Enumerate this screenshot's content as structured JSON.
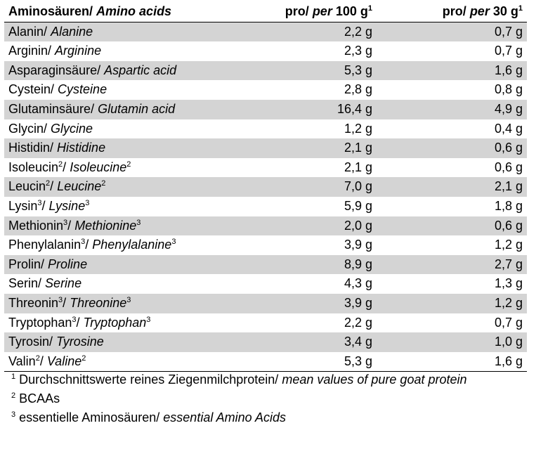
{
  "header": {
    "col1_de": "Aminosäuren/",
    "col1_en": "Amino acids",
    "col2_de": "pro/",
    "col2_en": "per",
    "col2_amount": "100 g",
    "col2_sup": "1",
    "col3_de": "pro/",
    "col3_en": "per",
    "col3_amount": "30 g",
    "col3_sup": "1"
  },
  "rows": [
    {
      "de": "Alanin",
      "en": "Alanine",
      "sup": "",
      "v100": "2,2 g",
      "v30": "0,7 g"
    },
    {
      "de": "Arginin",
      "en": "Arginine",
      "sup": "",
      "v100": "2,3 g",
      "v30": "0,7 g"
    },
    {
      "de": "Asparaginsäure",
      "en": "Aspartic acid",
      "sup": "",
      "v100": "5,3 g",
      "v30": "1,6 g"
    },
    {
      "de": "Cystein",
      "en": "Cysteine",
      "sup": "",
      "v100": "2,8 g",
      "v30": "0,8 g"
    },
    {
      "de": "Glutaminsäure",
      "en": "Glutamin acid",
      "sup": "",
      "v100": "16,4 g",
      "v30": "4,9 g"
    },
    {
      "de": "Glycin",
      "en": "Glycine",
      "sup": "",
      "v100": "1,2 g",
      "v30": "0,4 g"
    },
    {
      "de": "Histidin",
      "en": "Histidine",
      "sup": "",
      "v100": "2,1 g",
      "v30": "0,6 g"
    },
    {
      "de": "Isoleucin",
      "en": "Isoleucine",
      "sup": "2",
      "v100": "2,1 g",
      "v30": "0,6 g"
    },
    {
      "de": "Leucin",
      "en": "Leucine",
      "sup": "2",
      "v100": "7,0 g",
      "v30": "2,1 g"
    },
    {
      "de": "Lysin",
      "en": "Lysine",
      "sup": "3",
      "v100": "5,9 g",
      "v30": "1,8 g"
    },
    {
      "de": "Methionin",
      "en": "Methionine",
      "sup": "3",
      "v100": "2,0 g",
      "v30": "0,6 g"
    },
    {
      "de": "Phenylalanin",
      "en": "Phenylalanine",
      "sup": "3",
      "v100": "3,9 g",
      "v30": "1,2 g"
    },
    {
      "de": "Prolin",
      "en": "Proline",
      "sup": "",
      "v100": "8,9 g",
      "v30": "2,7 g"
    },
    {
      "de": "Serin",
      "en": "Serine",
      "sup": "",
      "v100": "4,3 g",
      "v30": "1,3 g"
    },
    {
      "de": "Threonin",
      "en": "Threonine",
      "sup": "3",
      "v100": "3,9 g",
      "v30": "1,2 g"
    },
    {
      "de": "Tryptophan",
      "en": "Tryptophan",
      "sup": "3",
      "v100": "2,2 g",
      "v30": "0,7 g"
    },
    {
      "de": "Tyrosin",
      "en": "Tyrosine",
      "sup": "",
      "v100": "3,4 g",
      "v30": "1,0 g"
    },
    {
      "de": "Valin",
      "en": "Valine",
      "sup": "2",
      "v100": "5,3 g",
      "v30": "1,6 g"
    }
  ],
  "footnotes": [
    {
      "num": "1",
      "de": "Durchschnittswerte reines Ziegenmilchprotein/",
      "en": "mean values of pure goat protein"
    },
    {
      "num": "2",
      "de": "BCAAs",
      "en": ""
    },
    {
      "num": "3",
      "de": "essentielle Aminosäuren/",
      "en": "essential Amino Acids"
    }
  ]
}
